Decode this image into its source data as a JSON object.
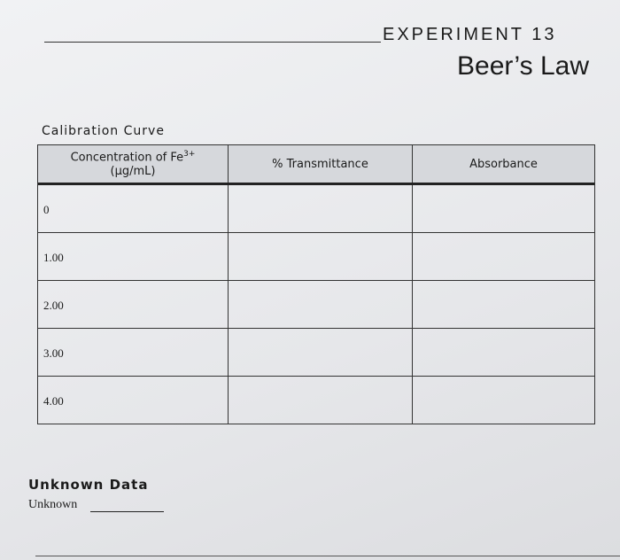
{
  "header": {
    "experiment": "EXPERIMENT 13",
    "title": "Beer’s Law"
  },
  "calibration": {
    "heading": "Calibration Curve",
    "table": {
      "columns": [
        {
          "text": "Concentration of Fe",
          "sup": "3+",
          "unit": "(µg/mL)"
        },
        {
          "text": "% Transmittance"
        },
        {
          "text": "Absorbance"
        }
      ],
      "rows": [
        "0",
        "1.00",
        "2.00",
        "3.00",
        "4.00"
      ]
    }
  },
  "unknown": {
    "heading": "Unknown Data",
    "label": "Unknown"
  }
}
